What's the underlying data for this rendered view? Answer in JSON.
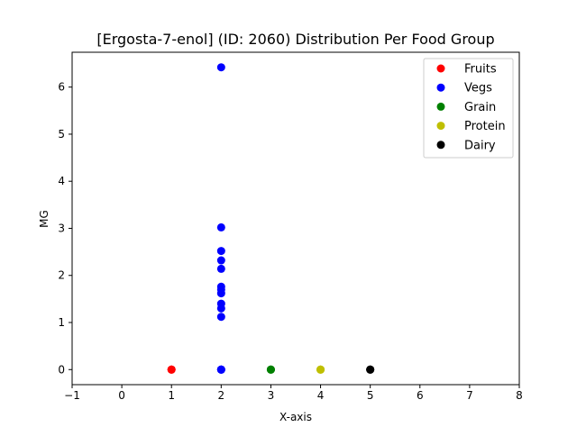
{
  "chart_data": {
    "type": "scatter",
    "title": "[Ergosta-7-enol] (ID: 2060) Distribution Per Food Group",
    "xlabel": "X-axis",
    "ylabel": "MG",
    "xlim": [
      -1,
      8
    ],
    "ylim": [
      -0.32,
      6.74
    ],
    "xticks": [
      "−1",
      "0",
      "1",
      "2",
      "3",
      "4",
      "5",
      "6",
      "7",
      "8"
    ],
    "xtick_values": [
      -1,
      0,
      1,
      2,
      3,
      4,
      5,
      6,
      7,
      8
    ],
    "yticks": [
      "0",
      "1",
      "2",
      "3",
      "4",
      "5",
      "6"
    ],
    "ytick_values": [
      0,
      1,
      2,
      3,
      4,
      5,
      6
    ],
    "grid": false,
    "legend_position": "top-right",
    "series": [
      {
        "name": "Fruits",
        "color": "#ff0000",
        "x": [
          1,
          1,
          1
        ],
        "y": [
          0,
          0,
          0
        ]
      },
      {
        "name": "Vegs",
        "color": "#0000ff",
        "x": [
          2,
          2,
          2,
          2,
          2,
          2,
          2,
          2,
          2,
          2,
          2,
          2,
          2,
          2,
          2
        ],
        "y": [
          6.42,
          3.02,
          2.52,
          2.32,
          2.14,
          1.76,
          1.7,
          1.62,
          1.4,
          1.3,
          1.12,
          0,
          0,
          0,
          0
        ]
      },
      {
        "name": "Grain",
        "color": "#008000",
        "x": [
          3,
          3,
          3
        ],
        "y": [
          0,
          0,
          0
        ]
      },
      {
        "name": "Protein",
        "color": "#bfbf00",
        "x": [
          4,
          4,
          4
        ],
        "y": [
          0,
          0,
          0
        ]
      },
      {
        "name": "Dairy",
        "color": "#000000",
        "x": [
          5,
          5,
          5
        ],
        "y": [
          0,
          0,
          0
        ]
      }
    ]
  }
}
